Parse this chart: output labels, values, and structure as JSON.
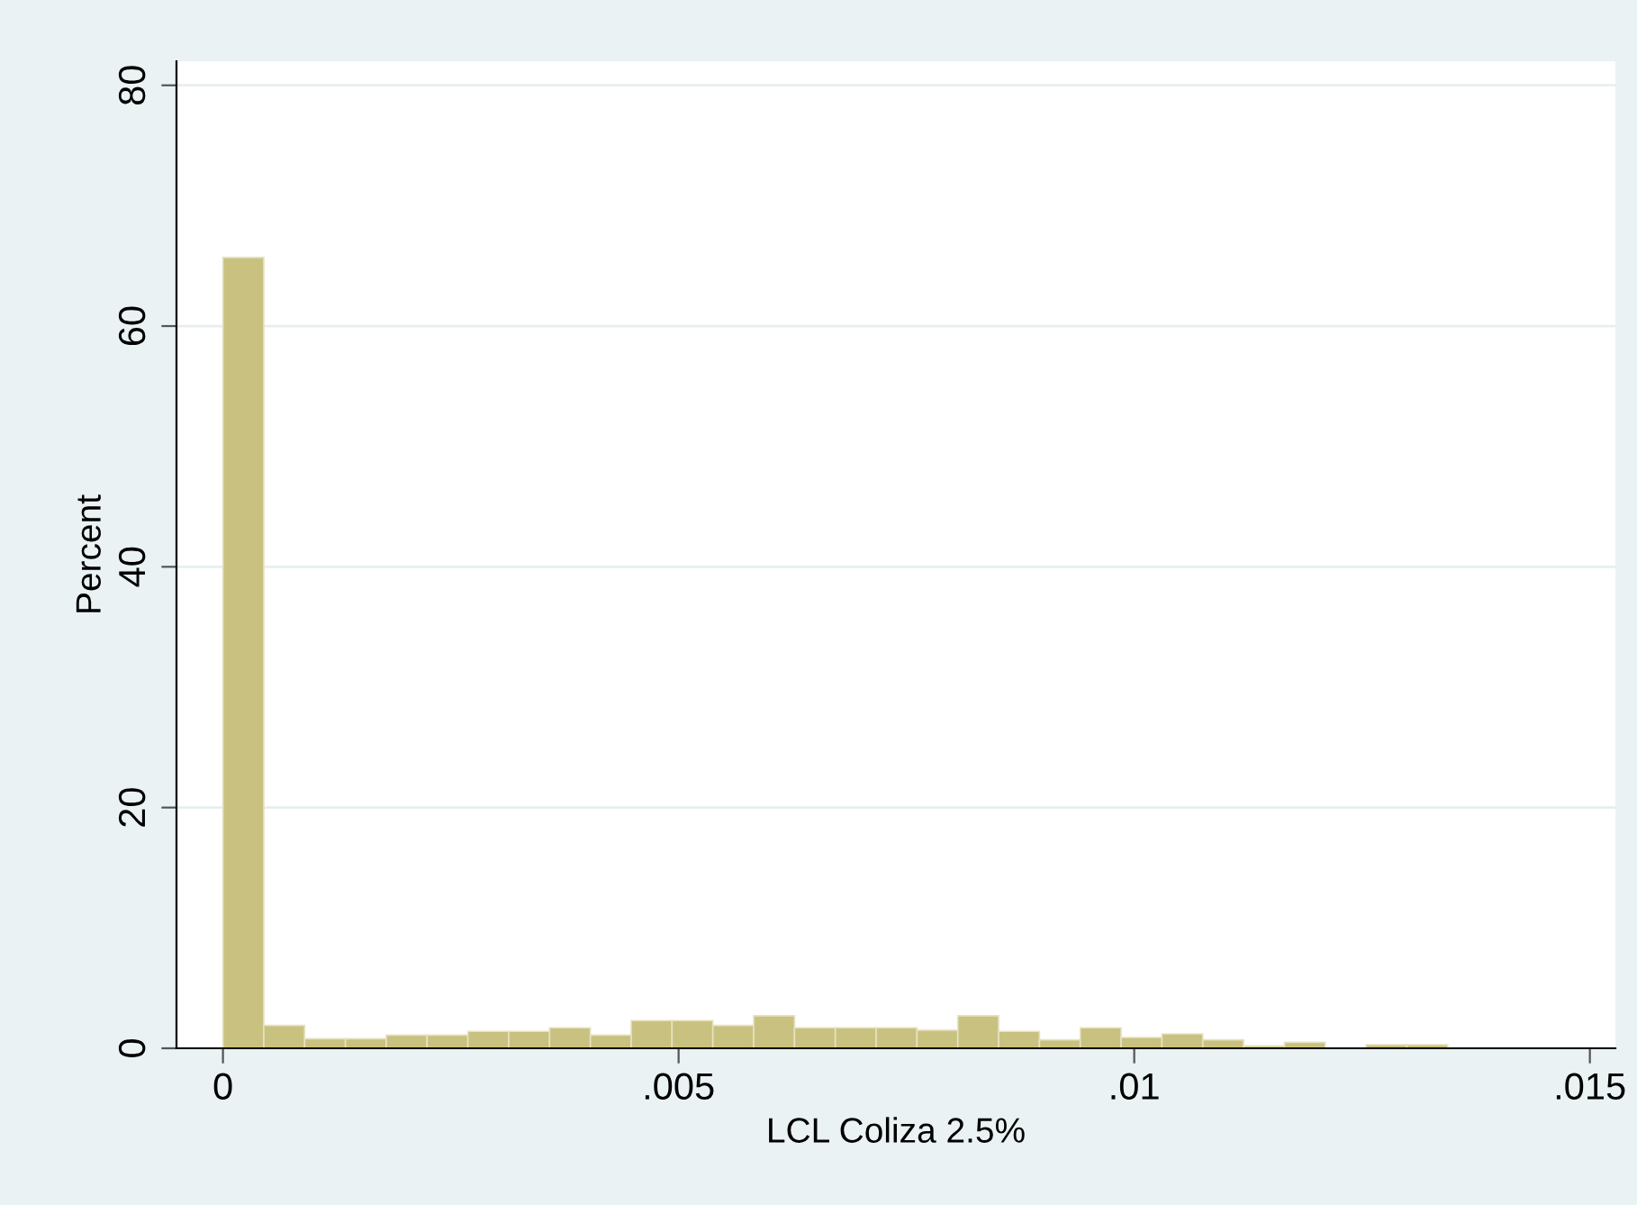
{
  "chart_data": {
    "type": "histogram",
    "xlabel": "LCL Coliza 2.5%",
    "ylabel": "Percent",
    "bins": [
      0,
      0.000448,
      0.000896,
      0.001344,
      0.001792,
      0.00224,
      0.002688,
      0.003136,
      0.003584,
      0.004032,
      0.00448,
      0.004928,
      0.005376,
      0.005824,
      0.006272,
      0.00672,
      0.007168,
      0.007616,
      0.008064,
      0.008512,
      0.00896,
      0.009408,
      0.009856,
      0.010304,
      0.010752,
      0.0112,
      0.011648,
      0.012096,
      0.012544,
      0.012992,
      0.01344
    ],
    "values": [
      65.7,
      1.9,
      0.8,
      0.8,
      1.1,
      1.1,
      1.4,
      1.4,
      1.7,
      1.1,
      2.3,
      2.3,
      1.9,
      2.7,
      1.7,
      1.7,
      1.7,
      1.5,
      2.7,
      1.4,
      0.7,
      1.7,
      0.9,
      1.2,
      0.7,
      0.2,
      0.5,
      0,
      0.3,
      0.3
    ],
    "color": "#c9c17f",
    "xlim": [
      -0.00051,
      0.01528
    ],
    "ylim": [
      0,
      82
    ],
    "xticks": [
      {
        "value": 0,
        "label": "0"
      },
      {
        "value": 0.005,
        "label": ".005"
      },
      {
        "value": 0.01,
        "label": ".01"
      },
      {
        "value": 0.015,
        "label": ".015"
      }
    ],
    "yticks": [
      0,
      20,
      40,
      60,
      80
    ],
    "grid": "y",
    "legend": false
  }
}
